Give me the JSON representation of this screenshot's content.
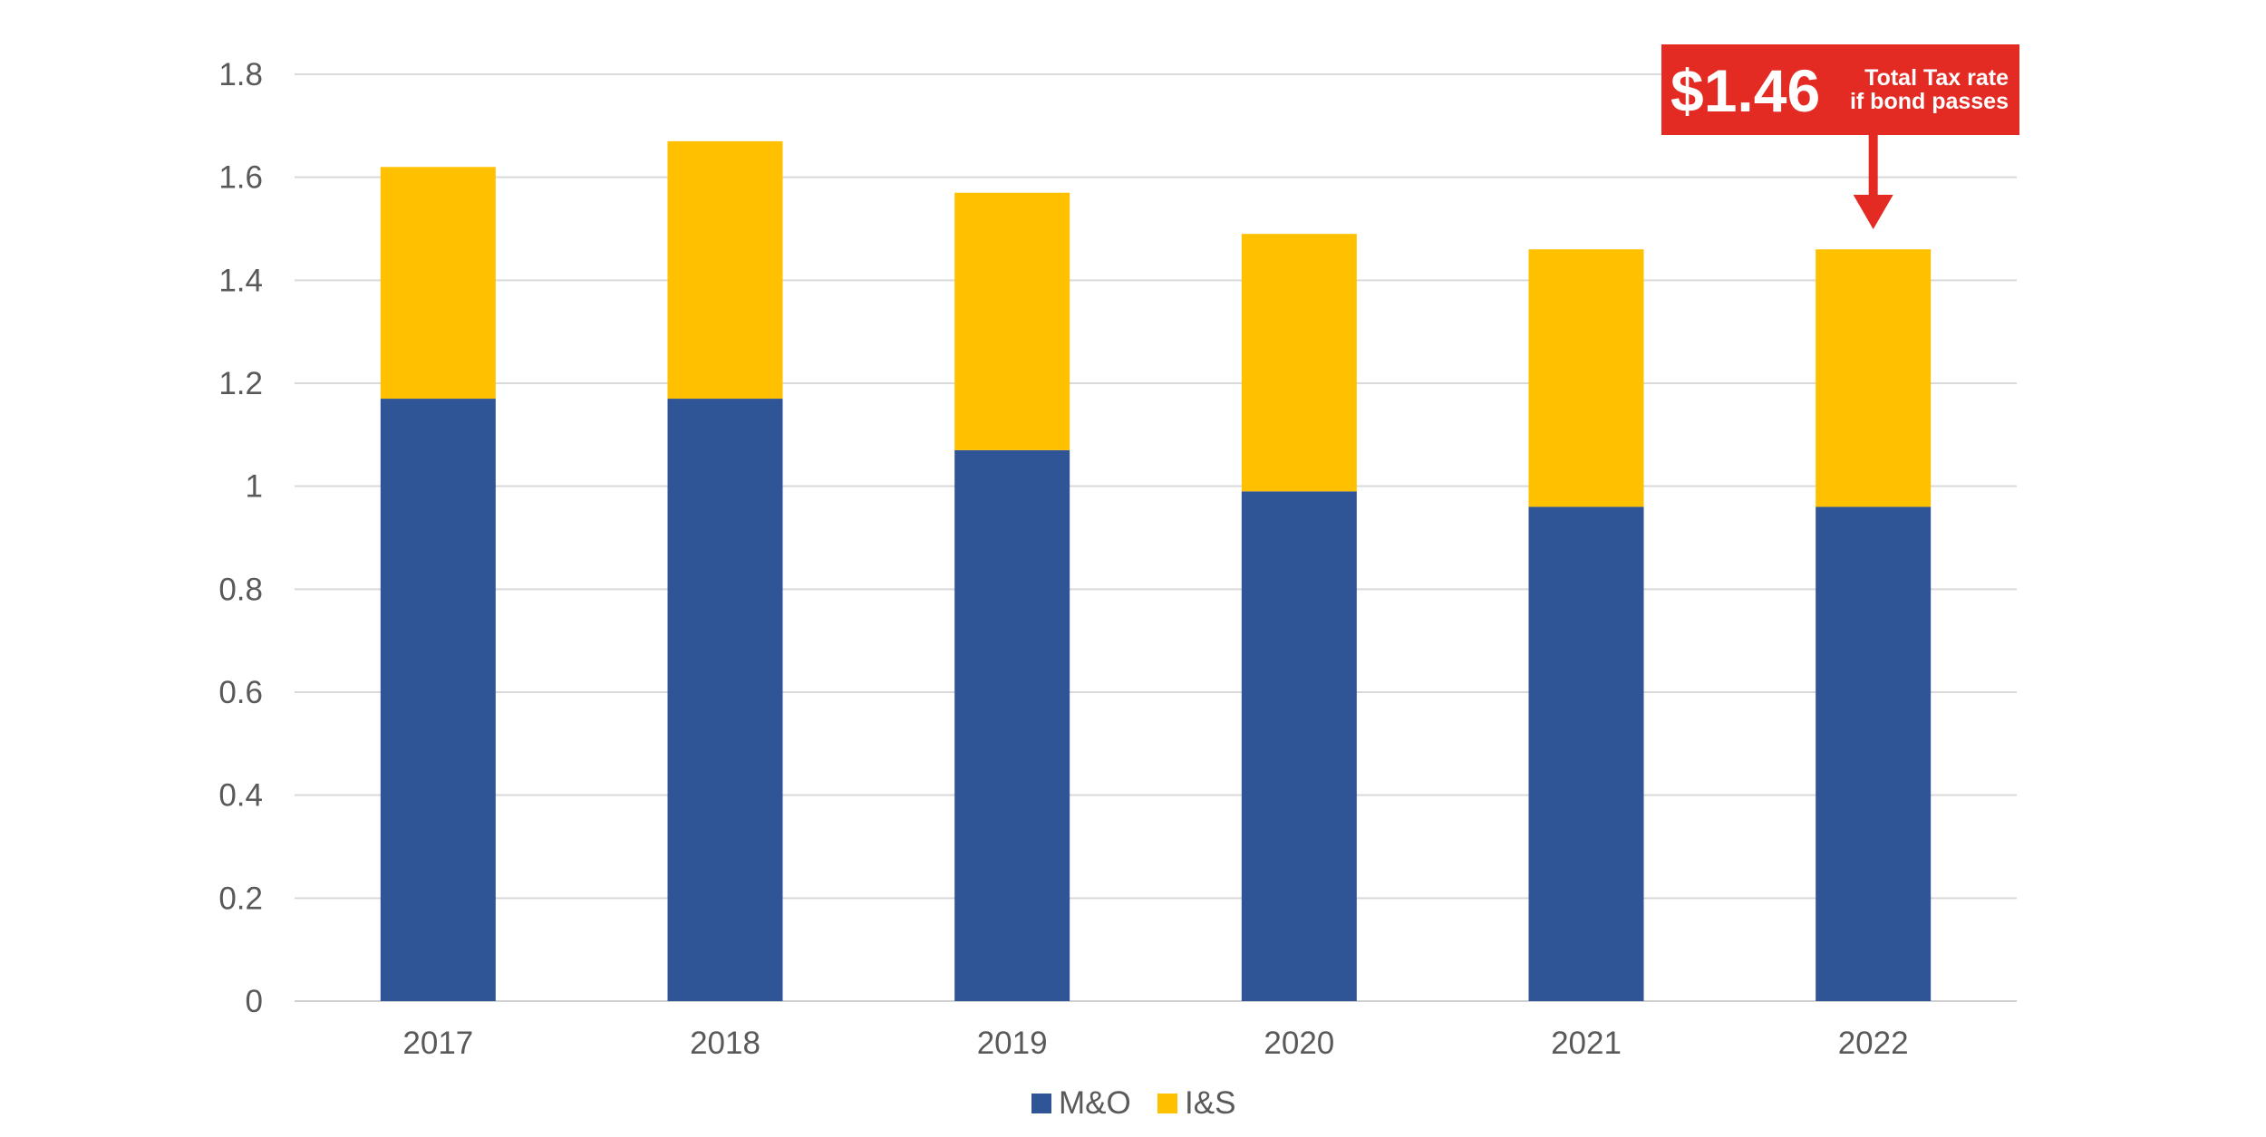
{
  "chart_data": {
    "type": "bar",
    "stacked": true,
    "categories": [
      "2017",
      "2018",
      "2019",
      "2020",
      "2021",
      "2022"
    ],
    "series": [
      {
        "name": "M&O",
        "values": [
          1.17,
          1.17,
          1.07,
          0.99,
          0.96,
          0.96
        ],
        "color": "#2F5597"
      },
      {
        "name": "I&S",
        "values": [
          0.45,
          0.5,
          0.5,
          0.5,
          0.5,
          0.5
        ],
        "color": "#FFC000"
      }
    ],
    "ylim": [
      0,
      1.8
    ],
    "yticks": [
      "0",
      "0.2",
      "0.4",
      "0.6",
      "0.8",
      "1",
      "1.2",
      "1.4",
      "1.6",
      "1.8"
    ],
    "ytick_values": [
      0,
      0.2,
      0.4,
      0.6,
      0.8,
      1,
      1.2,
      1.4,
      1.6,
      1.8
    ],
    "grid": true,
    "legend_position": "bottom",
    "annotation": {
      "big_text": "$1.46",
      "line1": "Total Tax rate",
      "line2": "if bond passes",
      "target_category": "2022",
      "color": "#E32B24"
    }
  }
}
